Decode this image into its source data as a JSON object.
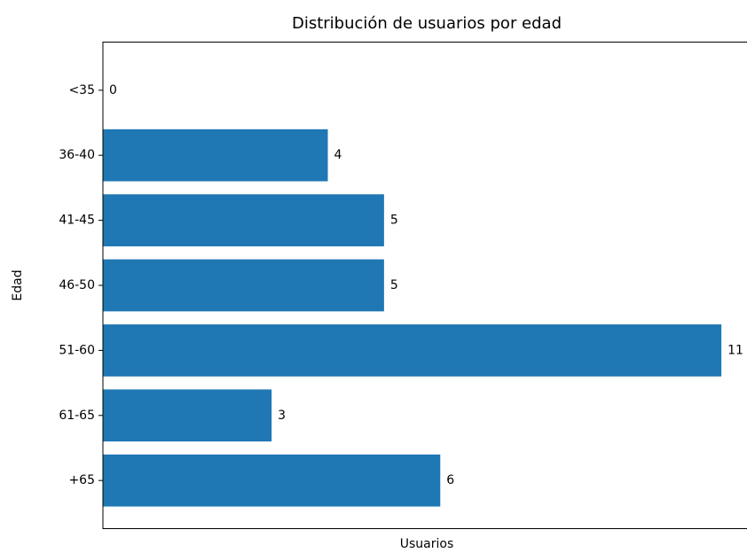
{
  "chart_data": {
    "type": "barh",
    "title": "Distribución de usuarios por edad",
    "x_label": "Usuarios",
    "y_label": "Edad",
    "categories": [
      "<35",
      "36-40",
      "41-45",
      "46-50",
      "51-60",
      "61-65",
      "+65"
    ],
    "values": [
      0,
      4,
      5,
      5,
      11,
      3,
      6
    ],
    "color": "#1f77b4",
    "xlim": [
      0,
      11.55
    ]
  }
}
